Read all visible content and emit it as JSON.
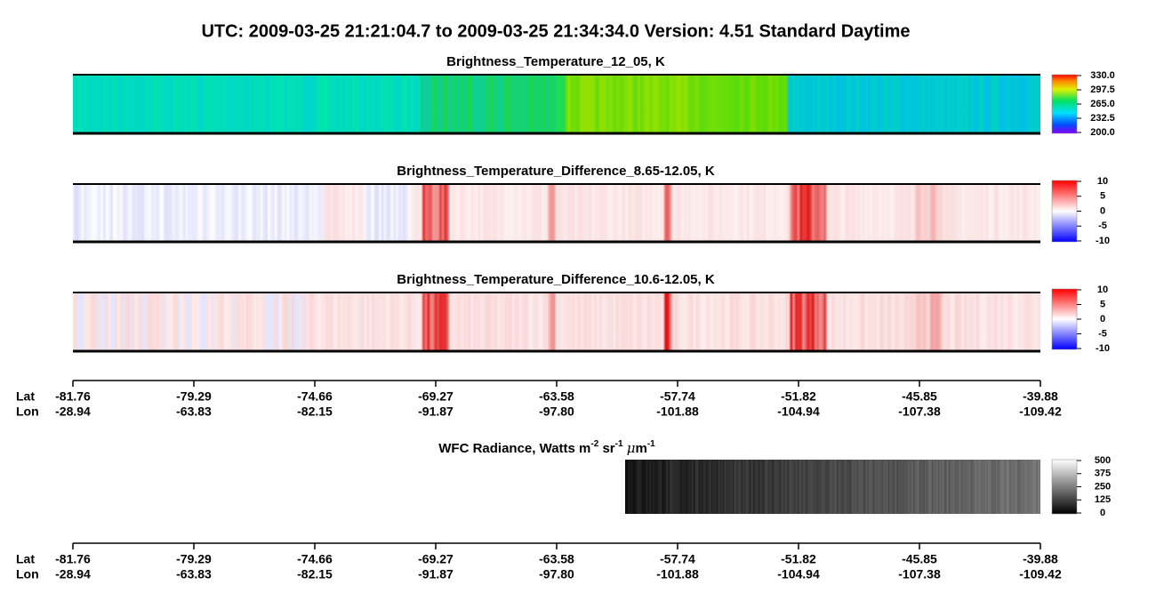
{
  "title": "UTC:  2009-03-25   21:21:04.7  to  2009-03-25   21:34:34.0    Version: 4.51  Standard Daytime",
  "panels": [
    {
      "title": "Brightness_Temperature_12_05, K",
      "colorbar": [
        "330.0",
        "297.5",
        "265.0",
        "232.5",
        "200.0"
      ]
    },
    {
      "title": "Brightness_Temperature_Difference_8.65-12.05, K",
      "colorbar": [
        "10",
        "5",
        "0",
        "-5",
        "-10"
      ]
    },
    {
      "title": "Brightness_Temperature_Difference_10.6-12.05, K",
      "colorbar": [
        "10",
        "5",
        "0",
        "-5",
        "-10"
      ]
    },
    {
      "title": [
        "WFC Radiance, Watts m",
        "-2",
        " sr",
        "-1",
        " ",
        "μ",
        "m",
        "-1"
      ],
      "colorbar": [
        "500",
        "375",
        "250",
        "125",
        "0"
      ]
    }
  ],
  "axes": [
    {
      "lat_label": "Lat",
      "lon_label": "Lon",
      "lat": [
        "-81.76",
        "-79.29",
        "-74.66",
        "-69.27",
        "-63.58",
        "-57.74",
        "-51.82",
        "-45.85",
        "-39.88"
      ],
      "lon": [
        "-28.94",
        "-63.83",
        "-82.15",
        "-91.87",
        "-97.80",
        "-101.88",
        "-104.94",
        "-107.38",
        "-109.42"
      ]
    },
    {
      "lat_label": "Lat",
      "lon_label": "Lon",
      "lat": [
        "-81.76",
        "-79.29",
        "-74.66",
        "-69.27",
        "-63.58",
        "-57.74",
        "-51.82",
        "-45.85",
        "-39.88"
      ],
      "lon": [
        "-28.94",
        "-63.83",
        "-82.15",
        "-91.87",
        "-97.80",
        "-101.88",
        "-104.94",
        "-107.38",
        "-109.42"
      ]
    }
  ]
}
